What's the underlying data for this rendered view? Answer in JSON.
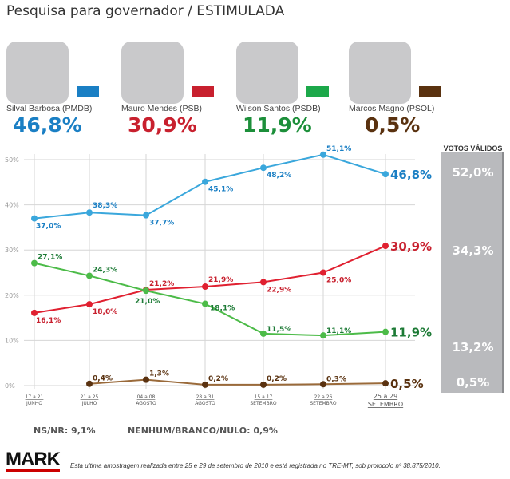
{
  "title": "Pesquisa para governador / ESTIMULADA",
  "candidates": [
    {
      "name": "Silval Barbosa (PMDB)",
      "pct": "46,8%",
      "color": "#1a7fc4"
    },
    {
      "name": "Mauro Mendes (PSB)",
      "pct": "30,9%",
      "color": "#c8202e"
    },
    {
      "name": "Wilson Santos (PSDB)",
      "pct": "11,9%",
      "color": "#1c8f3a"
    },
    {
      "name": "Marcos Magno (PSOL)",
      "pct": "0,5%",
      "color": "#5a3210"
    }
  ],
  "votos_validos": {
    "header": "VOTOS VÁLIDOS",
    "values": [
      "52,0%",
      "34,3%",
      "13,2%",
      "0,5%"
    ]
  },
  "chart_data": {
    "type": "line",
    "title": "Pesquisa para governador / ESTIMULADA",
    "yticks": [
      "0%",
      "10%",
      "20%",
      "30%",
      "40%",
      "50%"
    ],
    "ylim": [
      0,
      50
    ],
    "grid": true,
    "categories": [
      [
        "17 a 21",
        "JUNHO"
      ],
      [
        "21 a 25",
        "JULHO"
      ],
      [
        "04 a 08",
        "AGOSTO"
      ],
      [
        "28 a 31",
        "AGOSTO"
      ],
      [
        "15 a 17",
        "SETEMBRO"
      ],
      [
        "22 a 26",
        "SETEMBRO"
      ],
      [
        "25 a 29",
        "SETEMBRO"
      ]
    ],
    "series": [
      {
        "name": "Silval Barbosa (PMDB)",
        "line": "#3aa7dc",
        "text": "#1a7fc4",
        "values": [
          37.0,
          38.3,
          37.7,
          45.1,
          48.2,
          51.1,
          46.8
        ],
        "labels": [
          "37,0%",
          "38,3%",
          "37,7%",
          "45,1%",
          "48,2%",
          "51,1%",
          "46,8%"
        ]
      },
      {
        "name": "Mauro Mendes (PSB)",
        "line": "#e02030",
        "text": "#c8202e",
        "values": [
          16.1,
          18.0,
          21.2,
          21.9,
          22.9,
          25.0,
          30.9
        ],
        "labels": [
          "16,1%",
          "18,0%",
          "21,2%",
          "21,9%",
          "22,9%",
          "25,0%",
          "30,9%"
        ]
      },
      {
        "name": "Wilson Santos (PSDB)",
        "line": "#4cbb48",
        "text": "#1c7a35",
        "values": [
          27.1,
          24.3,
          21.0,
          18.1,
          11.5,
          11.1,
          11.9
        ],
        "labels": [
          "27,1%",
          "24,3%",
          "21,0%",
          "18,1%",
          "11,5%",
          "11,1%",
          "11,9%"
        ]
      },
      {
        "name": "Marcos Magno (PSOL)",
        "line": "#9a6a3a",
        "text": "#5a3210",
        "values": [
          null,
          0.4,
          1.3,
          0.2,
          0.2,
          0.3,
          0.5
        ],
        "labels": [
          null,
          "0,4%",
          "1,3%",
          "0,2%",
          "0,2%",
          "0,3%",
          "0,5%"
        ]
      }
    ]
  },
  "footer": {
    "nsnr": "NS/NR: 9,1%",
    "nenhum": "NENHUM/BRANCO/NULO: 0,9%",
    "logo": "MARK",
    "note": "Esta ultima amostragem realizada entre 25 e 29 de setembro de 2010 e está registrada no TRE-MT, sob protocolo  nº 38.875/2010."
  }
}
